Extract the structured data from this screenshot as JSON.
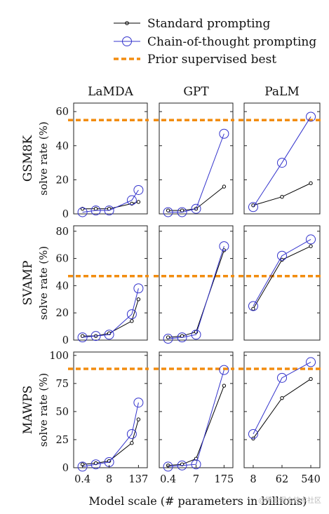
{
  "legend": [
    {
      "label": "Standard prompting",
      "color": "#000000",
      "style": "line-small-circle"
    },
    {
      "label": "Chain-of-thought prompting",
      "color": "#3333cc",
      "style": "line-large-circle"
    },
    {
      "label": "Prior supervised best",
      "color": "#f28c0f",
      "style": "dashed"
    }
  ],
  "x_axis_label": "Model scale (# parameters in billions)",
  "watermark": "@稀土掘金技术社区",
  "chart_data": {
    "type": "line",
    "columns": [
      {
        "title": "LaMDA",
        "x_ticks": [
          "0.4",
          "8",
          "137"
        ],
        "x_values": [
          "0.4",
          "2",
          "8",
          "68",
          "137"
        ]
      },
      {
        "title": "GPT",
        "x_ticks": [
          "0.4",
          "7",
          "175"
        ],
        "x_values": [
          "0.4",
          "1.3",
          "7",
          "175"
        ]
      },
      {
        "title": "PaLM",
        "x_ticks": [
          "8",
          "62",
          "540"
        ],
        "x_values": [
          "8",
          "62",
          "540"
        ]
      }
    ],
    "rows": [
      {
        "label": "GSM8K",
        "ylabel": "solve rate (%)",
        "ylim": [
          0,
          65
        ],
        "yticks": [
          0,
          20,
          40,
          60
        ],
        "supervised_best": 55,
        "panels": [
          {
            "standard": [
              3,
              3,
              3,
              6,
              7
            ],
            "cot": [
              1,
              2,
              2,
              8,
              14
            ]
          },
          {
            "standard": [
              2,
              2,
              3,
              16
            ],
            "cot": [
              1,
              1,
              3,
              47
            ]
          },
          {
            "standard": [
              5,
              10,
              18
            ],
            "cot": [
              4,
              30,
              57
            ]
          }
        ]
      },
      {
        "label": "SVAMP",
        "ylabel": "solve rate (%)",
        "ylim": [
          0,
          84
        ],
        "yticks": [
          0,
          20,
          40,
          60,
          80
        ],
        "supervised_best": 47,
        "panels": [
          {
            "standard": [
              3,
              3,
              5,
              14,
              30
            ],
            "cot": [
              2,
              3,
              4,
              19,
              38
            ]
          },
          {
            "standard": [
              2,
              3,
              6,
              66
            ],
            "cot": [
              1,
              2,
              4,
              69
            ]
          },
          {
            "standard": [
              23,
              59,
              69
            ],
            "cot": [
              25,
              62,
              74
            ]
          }
        ]
      },
      {
        "label": "MAWPS",
        "ylabel": "solve rate (%)",
        "ylim": [
          0,
          103
        ],
        "yticks": [
          0,
          25,
          50,
          75,
          100
        ],
        "supervised_best": 88,
        "panels": [
          {
            "standard": [
              3,
              4,
              6,
              22,
              43
            ],
            "cot": [
              1,
              3,
              5,
              30,
              58
            ]
          },
          {
            "standard": [
              2,
              3,
              8,
              73
            ],
            "cot": [
              1,
              2,
              3,
              87
            ]
          },
          {
            "standard": [
              26,
              62,
              79
            ],
            "cot": [
              30,
              80,
              94
            ]
          }
        ]
      }
    ]
  }
}
